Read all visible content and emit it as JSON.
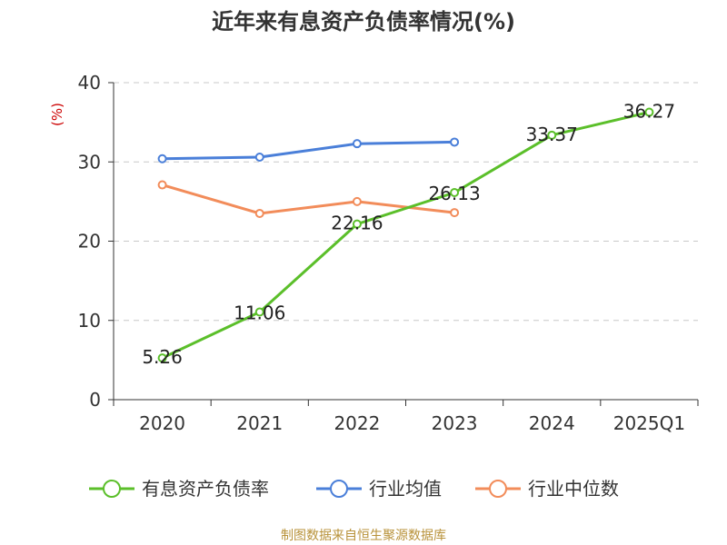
{
  "chart_data": {
    "type": "line",
    "title": "近年来有息资产负债率情况(%)",
    "ylabel": "(%)",
    "categories": [
      "2020",
      "2021",
      "2022",
      "2023",
      "2024",
      "2025Q1"
    ],
    "ylim": [
      0,
      40
    ],
    "yticks": [
      "0",
      "10",
      "20",
      "30",
      "40"
    ],
    "grid": true,
    "legend_position": "bottom",
    "series": [
      {
        "name": "有息资产负债率",
        "color": "#5bbf2a",
        "values": [
          5.26,
          11.06,
          22.16,
          26.13,
          33.37,
          36.27
        ],
        "show_labels": true,
        "labels": [
          "5.26",
          "11.06",
          "22.16",
          "26.13",
          "33.37",
          "36.27"
        ]
      },
      {
        "name": "行业均值",
        "color": "#4a7fd9",
        "values": [
          30.4,
          30.6,
          32.3,
          32.5,
          null,
          null
        ],
        "show_labels": false
      },
      {
        "name": "行业中位数",
        "color": "#f28c5a",
        "values": [
          27.1,
          23.5,
          25.0,
          23.6,
          null,
          null
        ],
        "show_labels": false
      }
    ]
  },
  "source": "制图数据来自恒生聚源数据库"
}
